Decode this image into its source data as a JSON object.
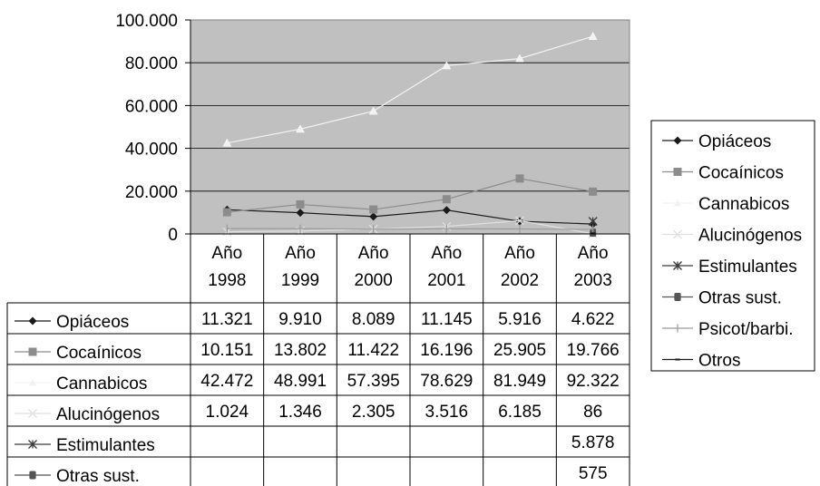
{
  "chart_data": {
    "type": "line",
    "title": "",
    "xlabel": "",
    "ylabel": "",
    "categories": [
      "Año\n1998",
      "Año\n1999",
      "Año\n2000",
      "Año\n2001",
      "Año\n2002",
      "Año\n2003"
    ],
    "ylim": [
      0,
      100000
    ],
    "yticks": [
      0,
      20000,
      40000,
      60000,
      80000,
      100000
    ],
    "ytick_labels": [
      "0",
      "20.000",
      "40.000",
      "60.000",
      "80.000",
      "100.000"
    ],
    "grid": true,
    "legend_position": "right",
    "plot_background": "#c0c0c0",
    "series": [
      {
        "name": "Opiáceos",
        "color": "#1a1a1a",
        "marker": "diamond",
        "values": [
          11321,
          9910,
          8089,
          11145,
          5916,
          4622
        ],
        "labels": [
          "11.321",
          "9.910",
          "8.089",
          "11.145",
          "5.916",
          "4.622"
        ]
      },
      {
        "name": "Cocaínicos",
        "color": "#8c8c8c",
        "marker": "square",
        "values": [
          10151,
          13802,
          11422,
          16196,
          25905,
          19766
        ],
        "labels": [
          "10.151",
          "13.802",
          "11.422",
          "16.196",
          "25.905",
          "19.766"
        ]
      },
      {
        "name": "Cannabicos",
        "color": "#f2f2f2",
        "marker": "triangle",
        "values": [
          42472,
          48991,
          57395,
          78629,
          81949,
          92322
        ],
        "labels": [
          "42.472",
          "48.991",
          "57.395",
          "78.629",
          "81.949",
          "92.322"
        ]
      },
      {
        "name": "Alucinógenos",
        "color": "#e0e0e0",
        "marker": "x",
        "values": [
          1024,
          1346,
          2305,
          3516,
          6185,
          86
        ],
        "labels": [
          "1.024",
          "1.346",
          "2.305",
          "3.516",
          "6.185",
          "86"
        ]
      },
      {
        "name": "Estimulantes",
        "color": "#3a3a3a",
        "marker": "star",
        "values": [
          null,
          null,
          null,
          null,
          null,
          5878
        ],
        "labels": [
          "",
          "",
          "",
          "",
          "",
          "5.878"
        ]
      },
      {
        "name": "Otras sust.",
        "color": "#555555",
        "marker": "roundsquare",
        "values": [
          null,
          null,
          null,
          null,
          null,
          575
        ],
        "labels": [
          "",
          "",
          "",
          "",
          "",
          "575"
        ]
      },
      {
        "name": "Psicot/barbi.",
        "color": "#9a9a9a",
        "marker": "plus",
        "values": [
          2500,
          2500,
          2200,
          2400,
          2300,
          2100
        ],
        "labels": [
          "",
          "",
          "",
          "",
          "",
          ""
        ]
      },
      {
        "name": "Otros",
        "color": "#1a1a1a",
        "marker": "dash",
        "values": [
          null,
          null,
          null,
          null,
          null,
          300
        ],
        "labels": [
          "",
          "",
          "",
          "",
          "",
          ""
        ]
      }
    ],
    "table_rows": [
      "Opiáceos",
      "Cocaínicos",
      "Cannabicos",
      "Alucinógenos",
      "Estimulantes",
      "Otras sust."
    ]
  }
}
